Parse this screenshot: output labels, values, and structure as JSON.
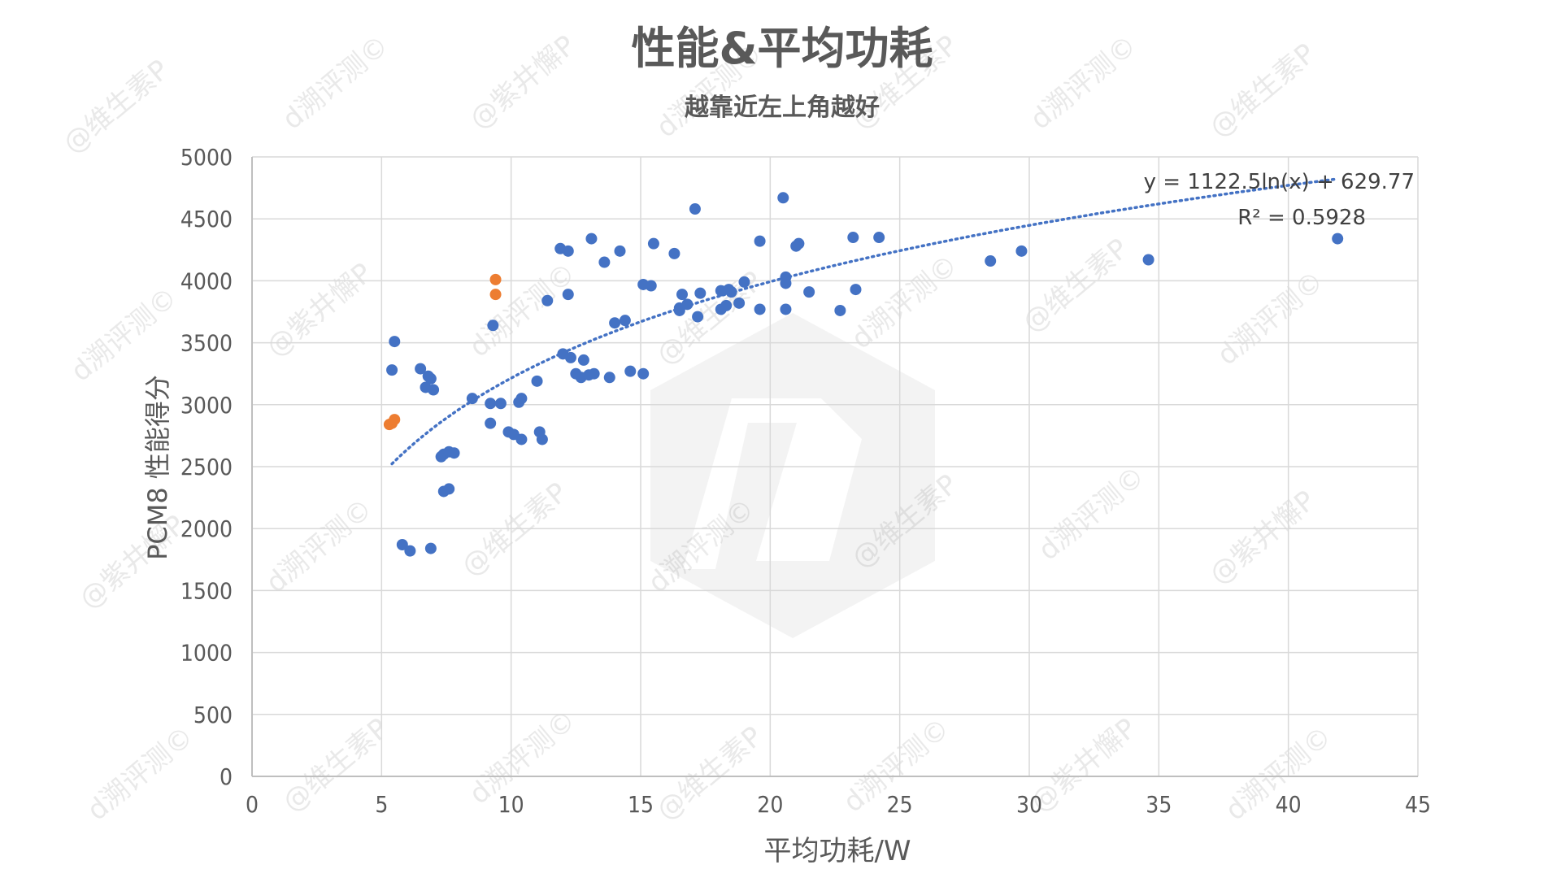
{
  "chart_data": {
    "type": "scatter",
    "title": "性能&平均功耗",
    "subtitle": "越靠近左上角越好",
    "xlabel": "平均功耗/W",
    "ylabel": "PCM8 性能得分",
    "xlim": [
      0,
      45
    ],
    "ylim": [
      0,
      5000
    ],
    "xticks": [
      "0",
      "5",
      "10",
      "15",
      "20",
      "25",
      "30",
      "35",
      "40",
      "45"
    ],
    "yticks": [
      "0",
      "500",
      "1000",
      "1500",
      "2000",
      "2500",
      "3000",
      "3500",
      "4000",
      "4500",
      "5000"
    ],
    "grid": true,
    "colors": {
      "series_blue": "#4472c4",
      "series_orange": "#ed7d31",
      "trendline": "#4472c4",
      "grid": "#d9d9d9"
    },
    "series": [
      {
        "color": "#4472c4",
        "points": [
          [
            5.4,
            3280
          ],
          [
            5.5,
            3510
          ],
          [
            5.8,
            1870
          ],
          [
            6.1,
            1820
          ],
          [
            6.5,
            3290
          ],
          [
            6.7,
            3140
          ],
          [
            6.8,
            3230
          ],
          [
            6.9,
            3210
          ],
          [
            7.0,
            3120
          ],
          [
            6.9,
            1840
          ],
          [
            7.3,
            2580
          ],
          [
            7.4,
            2600
          ],
          [
            7.6,
            2620
          ],
          [
            7.8,
            2610
          ],
          [
            7.4,
            2300
          ],
          [
            7.6,
            2320
          ],
          [
            8.5,
            3050
          ],
          [
            9.2,
            3010
          ],
          [
            9.2,
            2850
          ],
          [
            9.3,
            3640
          ],
          [
            9.6,
            3010
          ],
          [
            9.9,
            2780
          ],
          [
            10.1,
            2760
          ],
          [
            10.3,
            3020
          ],
          [
            10.4,
            3050
          ],
          [
            10.4,
            2720
          ],
          [
            11.0,
            3190
          ],
          [
            11.1,
            2780
          ],
          [
            11.2,
            2720
          ],
          [
            11.4,
            3840
          ],
          [
            11.9,
            4260
          ],
          [
            12.0,
            3410
          ],
          [
            12.2,
            4240
          ],
          [
            12.3,
            3380
          ],
          [
            12.2,
            3890
          ],
          [
            12.5,
            3250
          ],
          [
            12.7,
            3220
          ],
          [
            12.8,
            3360
          ],
          [
            13.0,
            3240
          ],
          [
            13.2,
            3250
          ],
          [
            13.1,
            4340
          ],
          [
            13.6,
            4150
          ],
          [
            13.8,
            3220
          ],
          [
            14.0,
            3660
          ],
          [
            14.2,
            4240
          ],
          [
            14.4,
            3680
          ],
          [
            14.6,
            3270
          ],
          [
            15.1,
            3250
          ],
          [
            15.1,
            3970
          ],
          [
            15.4,
            3960
          ],
          [
            15.5,
            4300
          ],
          [
            16.3,
            4220
          ],
          [
            16.5,
            3780
          ],
          [
            16.5,
            3760
          ],
          [
            16.6,
            3890
          ],
          [
            16.8,
            3810
          ],
          [
            17.1,
            4580
          ],
          [
            17.2,
            3710
          ],
          [
            17.3,
            3900
          ],
          [
            18.1,
            3920
          ],
          [
            18.1,
            3770
          ],
          [
            18.3,
            3800
          ],
          [
            18.4,
            3930
          ],
          [
            18.5,
            3910
          ],
          [
            18.8,
            3820
          ],
          [
            19.0,
            3990
          ],
          [
            19.6,
            3770
          ],
          [
            19.6,
            4320
          ],
          [
            20.5,
            4670
          ],
          [
            20.6,
            4030
          ],
          [
            20.6,
            3980
          ],
          [
            20.6,
            3770
          ],
          [
            21.0,
            4280
          ],
          [
            21.1,
            4300
          ],
          [
            21.5,
            3910
          ],
          [
            22.7,
            3760
          ],
          [
            23.2,
            4350
          ],
          [
            23.3,
            3930
          ],
          [
            24.2,
            4350
          ],
          [
            28.5,
            4160
          ],
          [
            29.7,
            4240
          ],
          [
            34.6,
            4170
          ],
          [
            41.9,
            4340
          ]
        ]
      },
      {
        "color": "#ed7d31",
        "points": [
          [
            5.3,
            2840
          ],
          [
            5.4,
            2850
          ],
          [
            5.5,
            2880
          ],
          [
            9.4,
            4010
          ],
          [
            9.4,
            3890
          ]
        ]
      }
    ],
    "trendline": {
      "type": "logarithmic",
      "a": 1122.5,
      "b": 629.77,
      "x_range": [
        5.4,
        41.9
      ],
      "equation_text": "y = 1122.5ln(x) + 629.77",
      "r2_text": "R² = 0.5928"
    },
    "watermarks": [
      "@维生素P",
      "d溯评测©",
      "@紫井懈P",
      "d溯评测©",
      "@维生素P",
      "d溯评测©"
    ]
  }
}
